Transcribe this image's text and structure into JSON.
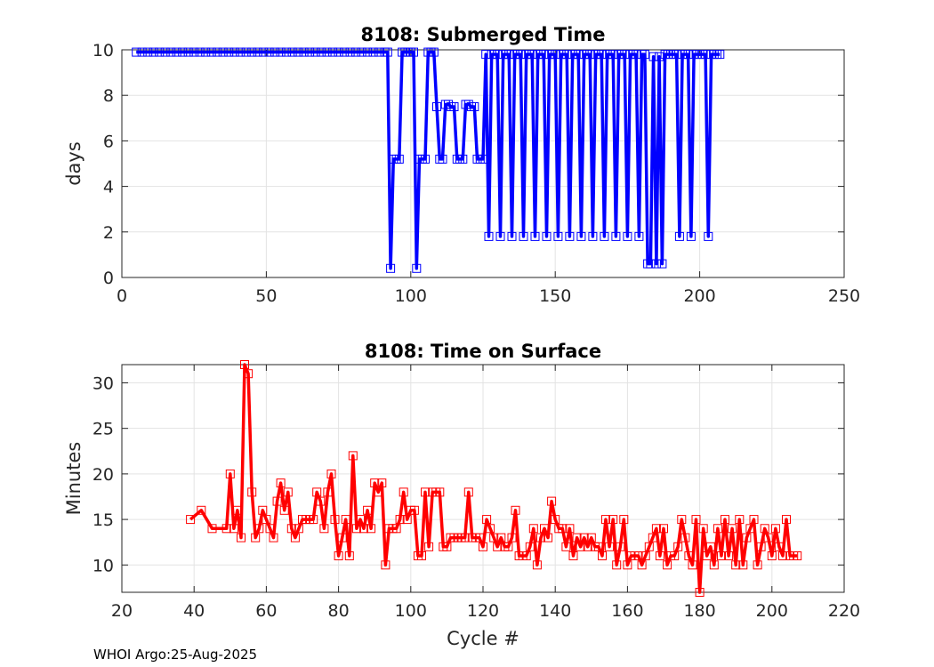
{
  "footer": "WHOI Argo:25-Aug-2025",
  "chart_data": [
    {
      "type": "line",
      "title": "8108: Submerged Time",
      "xlabel": "",
      "ylabel": "days",
      "xlim": [
        0,
        250
      ],
      "ylim": [
        0,
        10
      ],
      "xticks": [
        0,
        50,
        100,
        150,
        200,
        250
      ],
      "yticks": [
        0,
        2,
        4,
        6,
        8,
        10
      ],
      "grid": true,
      "color": "#0000ff",
      "marker": "square",
      "series": [
        {
          "x": [
            5,
            7,
            9,
            11,
            13,
            15,
            17,
            19,
            21,
            23,
            25,
            27,
            29,
            31,
            33,
            35,
            37,
            39,
            41,
            43,
            45,
            47,
            49,
            51,
            53,
            55,
            57,
            59,
            61,
            63,
            65,
            67,
            69,
            71,
            73,
            75,
            77,
            79,
            81,
            83,
            85,
            87,
            89,
            91,
            92,
            93,
            94,
            95,
            96,
            97,
            98,
            99,
            100,
            101,
            102,
            103,
            104,
            105,
            106,
            107,
            108,
            109,
            110,
            111,
            112,
            113,
            114,
            115,
            116,
            117,
            118,
            119,
            120,
            121,
            122,
            123,
            124,
            125,
            126,
            127,
            128,
            129,
            130,
            131,
            132,
            133,
            134,
            135,
            136,
            137,
            138,
            139,
            140,
            141,
            142,
            143,
            144,
            145,
            146,
            147,
            148,
            149,
            150,
            151,
            152,
            153,
            154,
            155,
            156,
            157,
            158,
            159,
            160,
            161,
            162,
            163,
            164,
            165,
            166,
            167,
            168,
            169,
            170,
            171,
            172,
            173,
            174,
            175,
            176,
            177,
            178,
            179,
            180,
            181,
            182,
            183,
            184,
            185,
            186,
            187,
            188,
            189,
            190,
            191,
            192,
            193,
            194,
            195,
            196,
            197,
            198,
            199,
            200,
            201,
            202,
            203,
            204,
            205,
            206,
            207
          ],
          "y": [
            9.9,
            9.9,
            9.9,
            9.9,
            9.9,
            9.9,
            9.9,
            9.9,
            9.9,
            9.9,
            9.9,
            9.9,
            9.9,
            9.9,
            9.9,
            9.9,
            9.9,
            9.9,
            9.9,
            9.9,
            9.9,
            9.9,
            9.9,
            9.9,
            9.9,
            9.9,
            9.9,
            9.9,
            9.9,
            9.9,
            9.9,
            9.9,
            9.9,
            9.9,
            9.9,
            9.9,
            9.9,
            9.9,
            9.9,
            9.9,
            9.9,
            9.9,
            9.9,
            9.9,
            9.9,
            0.4,
            5.2,
            5.2,
            5.2,
            9.9,
            9.9,
            9.9,
            9.9,
            9.9,
            0.4,
            5.2,
            5.2,
            5.2,
            9.9,
            9.9,
            9.9,
            7.5,
            5.2,
            5.2,
            7.6,
            7.6,
            7.5,
            7.5,
            5.2,
            5.2,
            5.2,
            7.6,
            7.6,
            7.5,
            7.5,
            5.2,
            5.2,
            5.2,
            9.8,
            1.8,
            9.8,
            9.8,
            9.8,
            1.8,
            9.8,
            9.8,
            9.8,
            1.8,
            9.8,
            9.8,
            9.8,
            1.8,
            9.8,
            9.8,
            9.8,
            1.8,
            9.8,
            9.8,
            9.8,
            1.8,
            9.8,
            9.8,
            9.8,
            1.8,
            9.8,
            9.8,
            9.8,
            1.8,
            9.8,
            9.8,
            9.8,
            1.8,
            9.8,
            9.8,
            9.8,
            1.8,
            9.8,
            9.8,
            9.8,
            1.8,
            9.8,
            9.8,
            9.8,
            1.8,
            9.8,
            9.8,
            9.8,
            1.8,
            9.8,
            9.8,
            9.8,
            1.8,
            9.8,
            9.8,
            0.6,
            0.6,
            9.7,
            0.6,
            9.7,
            0.6,
            9.8,
            9.8,
            9.8,
            9.8,
            9.8,
            1.8,
            9.8,
            9.8,
            9.8,
            1.8,
            9.8,
            9.8,
            9.8,
            9.8,
            9.8,
            1.8,
            9.8,
            9.8,
            9.8,
            9.8
          ]
        }
      ]
    },
    {
      "type": "line",
      "title": "8108: Time on Surface",
      "xlabel": "Cycle #",
      "ylabel": "Minutes",
      "xlim": [
        20,
        220
      ],
      "ylim": [
        7,
        32
      ],
      "xticks": [
        20,
        40,
        60,
        80,
        100,
        120,
        140,
        160,
        180,
        200,
        220
      ],
      "yticks": [
        10,
        15,
        20,
        25,
        30
      ],
      "grid": true,
      "color": "#ff0000",
      "marker": "square",
      "series": [
        {
          "x": [
            39,
            42,
            45,
            49,
            50,
            51,
            52,
            53,
            54,
            55,
            56,
            57,
            58,
            59,
            60,
            61,
            62,
            63,
            64,
            65,
            66,
            67,
            68,
            69,
            70,
            71,
            72,
            73,
            74,
            75,
            76,
            77,
            78,
            79,
            80,
            81,
            82,
            83,
            84,
            85,
            86,
            87,
            88,
            89,
            90,
            91,
            92,
            93,
            94,
            95,
            96,
            97,
            98,
            99,
            100,
            101,
            102,
            103,
            104,
            105,
            106,
            107,
            108,
            109,
            110,
            111,
            112,
            113,
            114,
            115,
            116,
            117,
            118,
            119,
            120,
            121,
            122,
            123,
            124,
            125,
            126,
            127,
            128,
            129,
            130,
            131,
            132,
            133,
            134,
            135,
            136,
            137,
            138,
            139,
            140,
            141,
            142,
            143,
            144,
            145,
            146,
            147,
            148,
            149,
            150,
            151,
            152,
            153,
            154,
            155,
            156,
            157,
            158,
            159,
            160,
            161,
            162,
            163,
            164,
            165,
            166,
            167,
            168,
            169,
            170,
            171,
            172,
            173,
            174,
            175,
            176,
            177,
            178,
            179,
            180,
            181,
            182,
            183,
            184,
            185,
            186,
            187,
            188,
            189,
            190,
            191,
            192,
            193,
            194,
            195,
            196,
            197,
            198,
            199,
            200,
            201,
            202,
            203,
            204,
            205,
            206,
            207
          ],
          "y": [
            15,
            16,
            14,
            14,
            20,
            14,
            16,
            13,
            32,
            31,
            18,
            13,
            14,
            16,
            15,
            14,
            13,
            17,
            19,
            16,
            18,
            14,
            13,
            14,
            15,
            15,
            15,
            15,
            18,
            17,
            14,
            18,
            20,
            15,
            11,
            13,
            15,
            11,
            22,
            14,
            15,
            14,
            16,
            14,
            19,
            18,
            19,
            10,
            14,
            14,
            14,
            15,
            18,
            15,
            16,
            16,
            11,
            11,
            18,
            12,
            18,
            18,
            18,
            12,
            12,
            13,
            13,
            13,
            13,
            13,
            18,
            13,
            13,
            13,
            12,
            15,
            14,
            13,
            12,
            13,
            12,
            12,
            13,
            16,
            11,
            11,
            11,
            12,
            14,
            10,
            13,
            14,
            13,
            17,
            15,
            14,
            14,
            12,
            14,
            11,
            13,
            12,
            13,
            12,
            13,
            12,
            12,
            11,
            15,
            12,
            15,
            10,
            12,
            15,
            10,
            11,
            11,
            11,
            10,
            11,
            12,
            13,
            14,
            11,
            14,
            10,
            11,
            11,
            12,
            15,
            13,
            11,
            10,
            15,
            7,
            14,
            11,
            12,
            10,
            14,
            11,
            15,
            11,
            14,
            10,
            15,
            10,
            13,
            14,
            15,
            10,
            12,
            14,
            13,
            11,
            14,
            12,
            11,
            15,
            11,
            11,
            11
          ]
        }
      ]
    }
  ]
}
